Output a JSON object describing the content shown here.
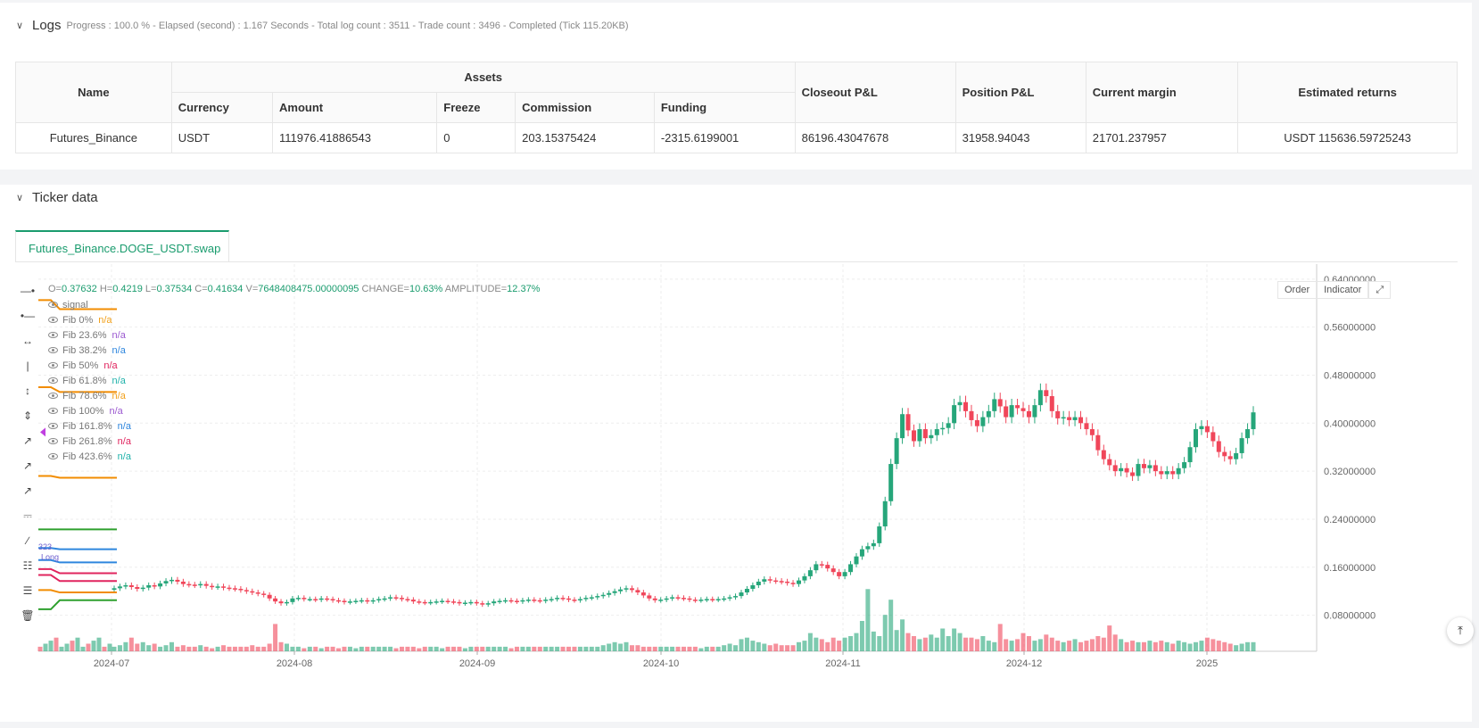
{
  "logs": {
    "title": "Logs",
    "meta": "Progress : 100.0 % - Elapsed (second) : 1.167  Seconds - Total log count : 3511 - Trade count : 3496 - Completed (Tick 115.20KB)",
    "table": {
      "name_header": "Name",
      "assets_header": "Assets",
      "sub_headers": [
        "Currency",
        "Amount",
        "Freeze",
        "Commission",
        "Funding"
      ],
      "closeout_header": "Closeout P&L",
      "position_header": "Position P&L",
      "margin_header": "Current margin",
      "returns_header": "Estimated returns",
      "row": {
        "name": "Futures_Binance",
        "currency": "USDT",
        "amount": "111976.41886543",
        "freeze": "0",
        "commission": "203.15375424",
        "funding": "-2315.6199001",
        "closeout": "86196.43047678",
        "position": "31958.94043",
        "margin": "21701.237957",
        "returns": "USDT 115636.59725243"
      }
    }
  },
  "ticker": {
    "title": "Ticker data",
    "tab_label": "Futures_Binance.DOGE_USDT.swap",
    "ohlc": {
      "o_label": "O=",
      "o": "0.37632",
      "h_label": "H=",
      "h": "0.4219",
      "l_label": "L=",
      "l": "0.37534",
      "c_label": "C=",
      "c": "0.41634",
      "v_label": "V=",
      "v": "7648408475.00000095",
      "change_label": "CHANGE=",
      "change": "10.63%",
      "amp_label": "AMPLITUDE=",
      "amp": "12.37%"
    },
    "legend": [
      {
        "label": "signal",
        "value": "",
        "color": "#888888"
      },
      {
        "label": "Fib 0%",
        "value": "n/a",
        "color": "#f2a01a"
      },
      {
        "label": "Fib 23.6%",
        "value": "n/a",
        "color": "#9b59d0"
      },
      {
        "label": "Fib 38.2%",
        "value": "n/a",
        "color": "#2e86de"
      },
      {
        "label": "Fib 50%",
        "value": "n/a",
        "color": "#e0245e"
      },
      {
        "label": "Fib 61.8%",
        "value": "n/a",
        "color": "#20b2aa"
      },
      {
        "label": "Fib 78.6%",
        "value": "n/a",
        "color": "#f2a01a"
      },
      {
        "label": "Fib 100%",
        "value": "n/a",
        "color": "#9b59d0"
      },
      {
        "label": "Fib 161.8%",
        "value": "n/a",
        "color": "#2e86de"
      },
      {
        "label": "Fib 261.8%",
        "value": "n/a",
        "color": "#e0245e"
      },
      {
        "label": "Fib 423.6%",
        "value": "n/a",
        "color": "#20b2aa"
      }
    ],
    "controls": {
      "order": "Order",
      "indicator": "Indicator"
    },
    "marker_labels": {
      "price": "323",
      "long": "Long"
    }
  },
  "colors": {
    "up": "#26a67a",
    "down": "#f0465a",
    "accent": "#1a9c6e"
  },
  "chart_data": {
    "type": "candlestick",
    "symbol": "Futures_Binance.DOGE_USDT.swap",
    "y_ticks": [
      "0.64000000",
      "0.56000000",
      "0.48000000",
      "0.40000000",
      "0.32000000",
      "0.24000000",
      "0.16000000",
      "0.08000000"
    ],
    "y_tick_values": [
      0.64,
      0.56,
      0.48,
      0.4,
      0.32,
      0.24,
      0.16,
      0.08
    ],
    "x_ticks": [
      "2024-07",
      "2024-08",
      "2024-09",
      "2024-10",
      "2024-11",
      "2024-12",
      "2025"
    ],
    "ylim": [
      0.02,
      0.665
    ],
    "series_close": [
      0.125,
      0.128,
      0.13,
      0.127,
      0.124,
      0.126,
      0.13,
      0.128,
      0.133,
      0.137,
      0.139,
      0.136,
      0.132,
      0.131,
      0.13,
      0.132,
      0.129,
      0.127,
      0.128,
      0.126,
      0.125,
      0.124,
      0.122,
      0.12,
      0.118,
      0.116,
      0.114,
      0.108,
      0.103,
      0.1,
      0.102,
      0.108,
      0.109,
      0.107,
      0.107,
      0.106,
      0.108,
      0.107,
      0.105,
      0.104,
      0.102,
      0.103,
      0.104,
      0.105,
      0.103,
      0.105,
      0.107,
      0.108,
      0.11,
      0.109,
      0.107,
      0.106,
      0.103,
      0.102,
      0.101,
      0.102,
      0.103,
      0.104,
      0.103,
      0.102,
      0.1,
      0.101,
      0.102,
      0.1,
      0.098,
      0.1,
      0.103,
      0.104,
      0.105,
      0.104,
      0.103,
      0.105,
      0.106,
      0.105,
      0.104,
      0.106,
      0.107,
      0.109,
      0.108,
      0.106,
      0.105,
      0.107,
      0.109,
      0.11,
      0.112,
      0.114,
      0.117,
      0.12,
      0.123,
      0.125,
      0.122,
      0.118,
      0.113,
      0.108,
      0.105,
      0.106,
      0.108,
      0.11,
      0.109,
      0.108,
      0.106,
      0.105,
      0.106,
      0.107,
      0.106,
      0.107,
      0.108,
      0.11,
      0.112,
      0.118,
      0.124,
      0.13,
      0.136,
      0.14,
      0.138,
      0.137,
      0.136,
      0.134,
      0.132,
      0.138,
      0.145,
      0.155,
      0.165,
      0.164,
      0.158,
      0.152,
      0.145,
      0.152,
      0.165,
      0.178,
      0.19,
      0.195,
      0.2,
      0.228,
      0.27,
      0.332,
      0.375,
      0.415,
      0.388,
      0.37,
      0.39,
      0.375,
      0.38,
      0.39,
      0.392,
      0.4,
      0.43,
      0.435,
      0.42,
      0.405,
      0.395,
      0.41,
      0.42,
      0.44,
      0.428,
      0.41,
      0.43,
      0.425,
      0.42,
      0.41,
      0.43,
      0.455,
      0.445,
      0.42,
      0.408,
      0.41,
      0.405,
      0.41,
      0.4,
      0.39,
      0.38,
      0.355,
      0.34,
      0.33,
      0.32,
      0.325,
      0.318,
      0.312,
      0.332,
      0.325,
      0.33,
      0.32,
      0.315,
      0.32,
      0.315,
      0.325,
      0.335,
      0.36,
      0.39,
      0.395,
      0.385,
      0.37,
      0.352,
      0.345,
      0.34,
      0.35,
      0.375,
      0.39,
      0.418
    ],
    "volume_relative": [
      0.3,
      0.4,
      0.6,
      0.9,
      0.5,
      0.6,
      0.4,
      0.5,
      0.3,
      0.4,
      0.6,
      0.3,
      0.4,
      0.3,
      0.3,
      0.4,
      0.3,
      0.2,
      0.3,
      0.4,
      0.3,
      0.3,
      0.3,
      0.3,
      0.4,
      0.3,
      0.3,
      0.5,
      1.8,
      0.6,
      0.5,
      0.3,
      0.3,
      0.2,
      0.3,
      0.3,
      0.2,
      0.3,
      0.3,
      0.2,
      0.3,
      0.3,
      0.2,
      0.3,
      0.3,
      0.3,
      0.3,
      0.3,
      0.3,
      0.2,
      0.3,
      0.3,
      0.3,
      0.2,
      0.3,
      0.3,
      0.3,
      0.2,
      0.3,
      0.3,
      0.3,
      0.2,
      0.3,
      0.3,
      0.3,
      0.3,
      0.3,
      0.3,
      0.3,
      0.2,
      0.3,
      0.3,
      0.3,
      0.3,
      0.3,
      0.3,
      0.3,
      0.3,
      0.3,
      0.3,
      0.3,
      0.3,
      0.3,
      0.3,
      0.3,
      0.4,
      0.5,
      0.6,
      0.5,
      0.6,
      0.4,
      0.4,
      0.3,
      0.3,
      0.3,
      0.3,
      0.3,
      0.3,
      0.3,
      0.3,
      0.3,
      0.3,
      0.2,
      0.3,
      0.3,
      0.3,
      0.4,
      0.5,
      0.4,
      0.8,
      0.9,
      0.7,
      0.6,
      0.5,
      0.4,
      0.5,
      0.4,
      0.4,
      0.4,
      0.6,
      0.7,
      1.2,
      0.9,
      0.8,
      0.6,
      0.9,
      0.7,
      0.9,
      1.0,
      1.2,
      2.0,
      4.1,
      1.3,
      1.0,
      2.4,
      3.4,
      1.4,
      2.1,
      1.2,
      1.0,
      0.8,
      0.9,
      1.1,
      0.9,
      1.5,
      1.0,
      1.5,
      1.2,
      0.9,
      0.9,
      0.8,
      1.0,
      0.7,
      0.6,
      1.8,
      0.8,
      0.7,
      0.8,
      1.2,
      1.0,
      0.7,
      0.8,
      1.1,
      0.9,
      0.7,
      0.6,
      0.7,
      0.8,
      0.6,
      0.7,
      0.8,
      1.0,
      0.9,
      1.7,
      1.1,
      0.8,
      0.6,
      0.7,
      0.6,
      0.6,
      0.7,
      0.6,
      0.7,
      0.6,
      0.5,
      0.7,
      0.6,
      0.5,
      0.6,
      0.7,
      0.9,
      0.8,
      0.7,
      0.6,
      0.5,
      0.4,
      0.5,
      0.6,
      0.6,
      0.8
    ],
    "indicator_lines": [
      {
        "name": "Fib line 1",
        "color": "#f28c00",
        "start": 0.605,
        "end": 0.59
      },
      {
        "name": "Fib line 2",
        "color": "#f28c00",
        "start": 0.46,
        "end": 0.452
      },
      {
        "name": "Fib line 3",
        "color": "#f28c00",
        "start": 0.312,
        "end": 0.309
      },
      {
        "name": "Fib line 4",
        "color": "#2ea02e",
        "start": 0.223,
        "end": 0.223
      },
      {
        "name": "Fib line 5",
        "color": "#2e86de",
        "start": 0.192,
        "end": 0.19
      },
      {
        "name": "Fib line 6",
        "color": "#2e86de",
        "start": 0.172,
        "end": 0.168
      },
      {
        "name": "Fib line 7",
        "color": "#e0245e",
        "start": 0.157,
        "end": 0.15
      },
      {
        "name": "Fib line 8",
        "color": "#e0245e",
        "start": 0.147,
        "end": 0.137
      },
      {
        "name": "Fib line 9",
        "color": "#f28c00",
        "start": 0.122,
        "end": 0.118
      },
      {
        "name": "Fib line 10",
        "color": "#2ea02e",
        "start": 0.09,
        "end": 0.105
      }
    ]
  }
}
